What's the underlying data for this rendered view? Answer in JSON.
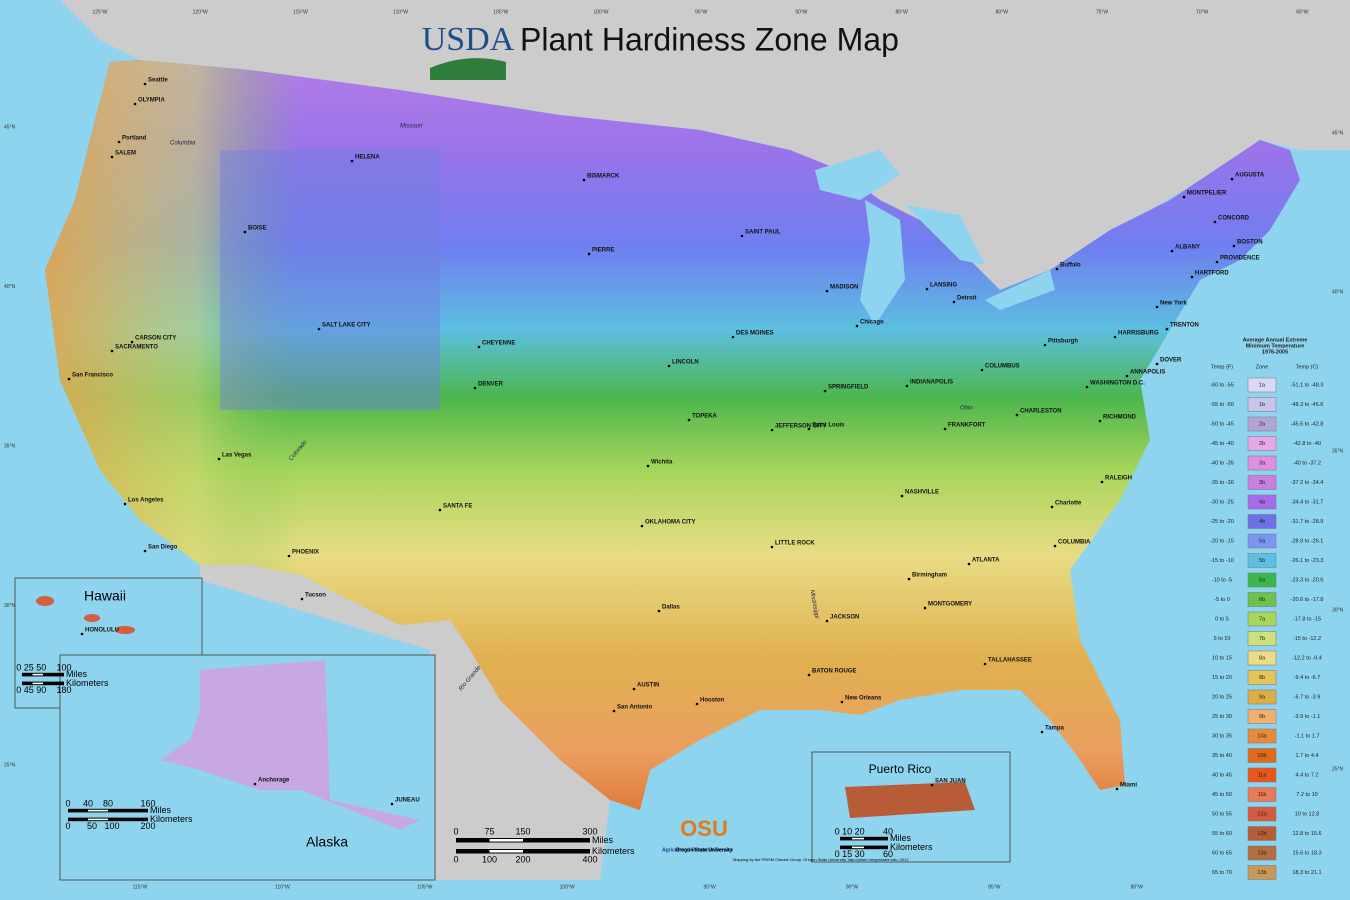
{
  "header": {
    "logo": "USDA",
    "title": "Plant Hardiness Zone Map"
  },
  "legend": {
    "title": [
      "Average Annual Extreme",
      "Minimum Temperature",
      "1976-2005"
    ],
    "columns": [
      "Temp (F)",
      "Zone",
      "Temp (C)"
    ],
    "rows": [
      {
        "temp_f": "-60 to -55",
        "zone": "1a",
        "temp_c": "-51.1 to -48.3",
        "color": "#d9d9f5"
      },
      {
        "temp_f": "-55 to -50",
        "zone": "1b",
        "temp_c": "-48.3 to -45.6",
        "color": "#c6c6ec"
      },
      {
        "temp_f": "-50 to -45",
        "zone": "2a",
        "temp_c": "-45.6 to -42.8",
        "color": "#b3a3d9"
      },
      {
        "temp_f": "-45 to -40",
        "zone": "2b",
        "temp_c": "-42.8 to -40",
        "color": "#e8a8e8"
      },
      {
        "temp_f": "-40 to -35",
        "zone": "3a",
        "temp_c": "-40 to -37.2",
        "color": "#de8fe0"
      },
      {
        "temp_f": "-35 to -30",
        "zone": "3b",
        "temp_c": "-37.2 to -34.4",
        "color": "#c97ee0"
      },
      {
        "temp_f": "-30 to -25",
        "zone": "4a",
        "temp_c": "-34.4 to -31.7",
        "color": "#a86ae8"
      },
      {
        "temp_f": "-25 to -20",
        "zone": "4b",
        "temp_c": "-31.7 to -28.9",
        "color": "#6f6fe8"
      },
      {
        "temp_f": "-20 to -15",
        "zone": "5a",
        "temp_c": "-28.9 to -26.1",
        "color": "#7b96f0"
      },
      {
        "temp_f": "-15 to -10",
        "zone": "5b",
        "temp_c": "-26.1 to -23.3",
        "color": "#5cc0e0"
      },
      {
        "temp_f": "-10 to -5",
        "zone": "6a",
        "temp_c": "-23.3 to -20.6",
        "color": "#3cb54a"
      },
      {
        "temp_f": "-5 to 0",
        "zone": "6b",
        "temp_c": "-20.6 to -17.8",
        "color": "#6cc24a"
      },
      {
        "temp_f": "0 to 5",
        "zone": "7a",
        "temp_c": "-17.8 to -15",
        "color": "#a8d65c"
      },
      {
        "temp_f": "5 to 10",
        "zone": "7b",
        "temp_c": "-15 to -12.2",
        "color": "#cde07a"
      },
      {
        "temp_f": "10 to 15",
        "zone": "8a",
        "temp_c": "-12.2 to -9.4",
        "color": "#eedc82"
      },
      {
        "temp_f": "15 to 20",
        "zone": "8b",
        "temp_c": "-9.4 to -6.7",
        "color": "#e6c45c"
      },
      {
        "temp_f": "20 to 25",
        "zone": "9a",
        "temp_c": "-6.7 to -3.9",
        "color": "#dcae4a"
      },
      {
        "temp_f": "25 to 30",
        "zone": "9b",
        "temp_c": "-3.9 to -1.1",
        "color": "#f0b070"
      },
      {
        "temp_f": "30 to 35",
        "zone": "10a",
        "temp_c": "-1.1 to 1.7",
        "color": "#e88a3a"
      },
      {
        "temp_f": "35 to 40",
        "zone": "10b",
        "temp_c": "1.7 to 4.4",
        "color": "#e06a1a"
      },
      {
        "temp_f": "40 to 45",
        "zone": "11a",
        "temp_c": "4.4 to 7.2",
        "color": "#e8561e"
      },
      {
        "temp_f": "45 to 50",
        "zone": "11b",
        "temp_c": "7.2 to 10",
        "color": "#e87a5a"
      },
      {
        "temp_f": "50 to 55",
        "zone": "12a",
        "temp_c": "10 to 12.8",
        "color": "#d65a40"
      },
      {
        "temp_f": "55 to 60",
        "zone": "12b",
        "temp_c": "12.8 to 15.6",
        "color": "#b85c38"
      },
      {
        "temp_f": "60 to 65",
        "zone": "13a",
        "temp_c": "15.6 to 18.3",
        "color": "#b07040"
      },
      {
        "temp_f": "65 to 70",
        "zone": "13b",
        "temp_c": "18.3 to 21.1",
        "color": "#c8985a"
      }
    ]
  },
  "cities": [
    "Seattle",
    "OLYMPIA",
    "Portland",
    "SALEM",
    "BOISE",
    "HELENA",
    "CARSON CITY",
    "SACRAMENTO",
    "San Francisco",
    "SALT LAKE CITY",
    "CHEYENNE",
    "DENVER",
    "Las Vegas",
    "Los Angeles",
    "San Diego",
    "PHOENIX",
    "Tucson",
    "SANTA FE",
    "BISMARCK",
    "PIERRE",
    "LINCOLN",
    "DES MOINES",
    "SAINT PAUL",
    "MADISON",
    "Chicago",
    "LANSING",
    "Detroit",
    "TOPEKA",
    "Wichita",
    "OKLAHOMA CITY",
    "Dallas",
    "AUSTIN",
    "San Antonio",
    "Houston",
    "LITTLE ROCK",
    "JEFFERSON CITY",
    "Saint Louis",
    "SPRINGFIELD",
    "INDIANAPOLIS",
    "COLUMBUS",
    "FRANKFORT",
    "NASHVILLE",
    "JACKSON",
    "BATON ROUGE",
    "New Orleans",
    "Birmingham",
    "ATLANTA",
    "MONTGOMERY",
    "TALLAHASSEE",
    "Tampa",
    "Miami",
    "CHARLESTON",
    "RICHMOND",
    "RALEIGH",
    "Charlotte",
    "COLUMBIA",
    "WASHINGTON D.C.",
    "ANNAPOLIS",
    "HARRISBURG",
    "Pittsburgh",
    "Buffalo",
    "TRENTON",
    "New York",
    "DOVER",
    "ALBANY",
    "HARTFORD",
    "PROVIDENCE",
    "BOSTON",
    "CONCORD",
    "MONTPELIER",
    "AUGUSTA",
    "HONOLULU",
    "Anchorage",
    "JUNEAU",
    "SAN JUAN"
  ],
  "rivers": [
    "Columbia",
    "Missouri",
    "Ohio",
    "Mississippi",
    "Rio Grande",
    "Colorado"
  ],
  "graticule": {
    "top": [
      "125°W",
      "120°W",
      "115°W",
      "110°W",
      "105°W",
      "100°W",
      "95°W",
      "90°W",
      "85°W",
      "80°W",
      "75°W",
      "70°W",
      "65°W"
    ],
    "bottom": [
      "115°W",
      "110°W",
      "105°W",
      "100°W",
      "95°W",
      "90°W",
      "85°W",
      "80°W"
    ],
    "left": [
      "45°N",
      "40°N",
      "35°N",
      "30°N",
      "25°N"
    ],
    "right": [
      "45°N",
      "40°N",
      "35°N",
      "30°N",
      "25°N"
    ]
  },
  "insets": {
    "hawaii": "Hawaii",
    "alaska": "Alaska",
    "puerto_rico": "Puerto Rico"
  },
  "scales": {
    "main": {
      "miles": [
        "0",
        "75",
        "150",
        "300"
      ],
      "miles_unit": "Miles",
      "km": [
        "0",
        "100",
        "200",
        "400"
      ],
      "km_unit": "Kilometers"
    },
    "hawaii": {
      "miles": [
        "0 25 50",
        "100"
      ],
      "miles_unit": "Miles",
      "km": [
        "0 45 90",
        "180"
      ],
      "km_unit": "Kilometers"
    },
    "alaska": {
      "miles": [
        "0",
        "40",
        "80",
        "160"
      ],
      "miles_unit": "Miles",
      "km": [
        "0",
        "50",
        "100",
        "200"
      ],
      "km_unit": "Kilometers"
    },
    "puerto_rico": {
      "miles": [
        "0 10 20",
        "40"
      ],
      "miles_unit": "Miles",
      "km": [
        "0 15 30",
        "60"
      ],
      "km_unit": "Kilometers"
    }
  },
  "credits": {
    "ars": "Agricultural Research Service",
    "osu": "OSU",
    "osu_name": "Oregon State University",
    "mapping": "Mapping by the PRISM Climate Group, Oregon State University, http://prism.oregonstate.edu, 2012"
  }
}
